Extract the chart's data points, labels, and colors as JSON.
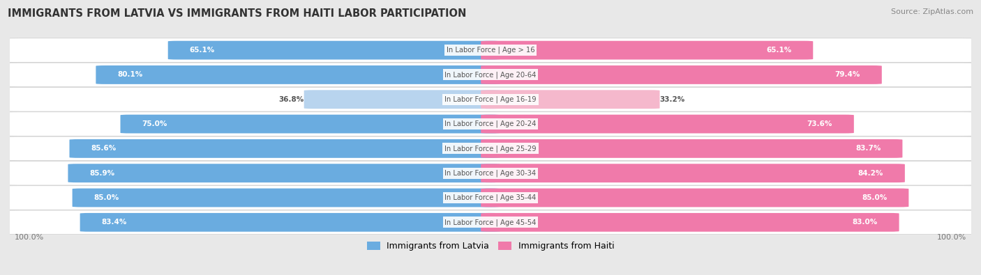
{
  "title": "IMMIGRANTS FROM LATVIA VS IMMIGRANTS FROM HAITI LABOR PARTICIPATION",
  "source": "Source: ZipAtlas.com",
  "categories": [
    "In Labor Force | Age > 16",
    "In Labor Force | Age 20-64",
    "In Labor Force | Age 16-19",
    "In Labor Force | Age 20-24",
    "In Labor Force | Age 25-29",
    "In Labor Force | Age 30-34",
    "In Labor Force | Age 35-44",
    "In Labor Force | Age 45-54"
  ],
  "latvia_values": [
    65.1,
    80.1,
    36.8,
    75.0,
    85.6,
    85.9,
    85.0,
    83.4
  ],
  "haiti_values": [
    65.1,
    79.4,
    33.2,
    73.6,
    83.7,
    84.2,
    85.0,
    83.0
  ],
  "latvia_color": "#6aace0",
  "latvia_color_light": "#b8d4ee",
  "haiti_color": "#f07aaa",
  "haiti_color_light": "#f5b8cc",
  "background_color": "#e8e8e8",
  "row_bg_color": "#ffffff",
  "max_value": 100.0,
  "legend_latvia": "Immigrants from Latvia",
  "legend_haiti": "Immigrants from Haiti",
  "center_label_color": "#555555",
  "value_label_white_threshold": 45.0
}
